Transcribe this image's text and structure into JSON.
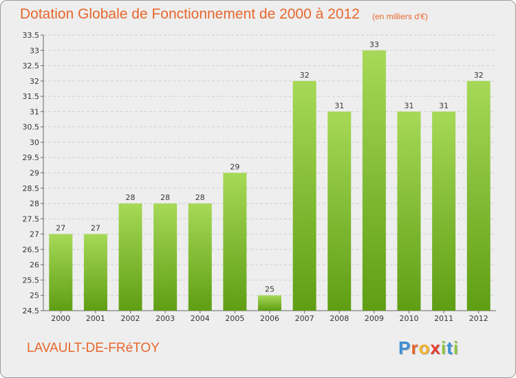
{
  "header": {
    "title": "Dotation Globale de Fonctionnement de 2000 à 2012",
    "unit": "(en milliers d'€)"
  },
  "footer": {
    "commune": "LAVAULT-DE-FRéTOY",
    "logo_letters": [
      "P",
      "r",
      "o",
      "x",
      "i",
      "t",
      "i"
    ]
  },
  "colors": {
    "bar_light": "#9fd34f",
    "bar_dark": "#5f9e14",
    "title": "#e8662c"
  },
  "chart_data": {
    "type": "bar",
    "title": "Dotation Globale de Fonctionnement de 2000 à 2012",
    "subtitle": "(en milliers d'€)",
    "categories": [
      "2000",
      "2001",
      "2002",
      "2003",
      "2004",
      "2005",
      "2006",
      "2007",
      "2008",
      "2009",
      "2010",
      "2011",
      "2012"
    ],
    "values": [
      27,
      27,
      28,
      28,
      28,
      29,
      25,
      32,
      31,
      33,
      31,
      31,
      32
    ],
    "data_labels": [
      "27",
      "27",
      "28",
      "28",
      "28",
      "29",
      "25",
      "32",
      "31",
      "33",
      "31",
      "31",
      "32"
    ],
    "yticks": [
      "24.5",
      "25",
      "25.5",
      "26",
      "26.5",
      "27",
      "27.5",
      "28",
      "28.5",
      "29",
      "29.5",
      "30",
      "30.5",
      "31",
      "31.5",
      "32",
      "32.5",
      "33",
      "33.5"
    ],
    "ylim": [
      24.5,
      33.5
    ],
    "grid": true,
    "legend": "none"
  }
}
